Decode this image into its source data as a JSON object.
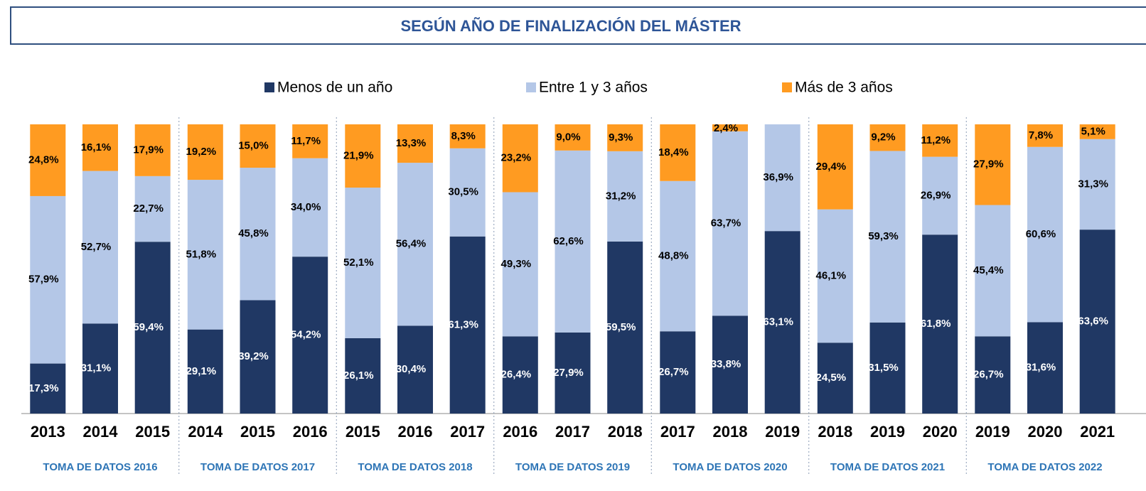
{
  "chart_data": {
    "type": "stacked-bar",
    "stacking": "percent",
    "title": "SEGÚN AÑO DE FINALIZACIÓN DEL MÁSTER",
    "groups": [
      {
        "name": "TOMA DE DATOS 2016",
        "categories": [
          "2013",
          "2014",
          "2015"
        ]
      },
      {
        "name": "TOMA DE DATOS 2017",
        "categories": [
          "2014",
          "2015",
          "2016"
        ]
      },
      {
        "name": "TOMA DE DATOS 2018",
        "categories": [
          "2015",
          "2016",
          "2017"
        ]
      },
      {
        "name": "TOMA DE DATOS 2019",
        "categories": [
          "2016",
          "2017",
          "2018"
        ]
      },
      {
        "name": "TOMA DE DATOS 2020",
        "categories": [
          "2017",
          "2018",
          "2019"
        ]
      },
      {
        "name": "TOMA DE DATOS 2021",
        "categories": [
          "2018",
          "2019",
          "2020"
        ]
      },
      {
        "name": "TOMA DE DATOS 2022",
        "categories": [
          "2019",
          "2020",
          "2021"
        ]
      }
    ],
    "series": [
      {
        "name": "Menos de un año",
        "color": "#203864",
        "values": [
          17.3,
          31.1,
          59.4,
          29.1,
          39.2,
          54.2,
          26.1,
          30.4,
          61.3,
          26.4,
          27.9,
          59.5,
          26.7,
          33.8,
          63.1,
          24.5,
          31.5,
          61.8,
          26.7,
          31.6,
          63.6
        ],
        "value_labels": [
          "17,3%",
          "31,1%",
          "59,4%",
          "29,1%",
          "39,2%",
          "54,2%",
          "26,1%",
          "30,4%",
          "61,3%",
          "26,4%",
          "27,9%",
          "59,5%",
          "26,7%",
          "33,8%",
          "63,1%",
          "24,5%",
          "31,5%",
          "61,8%",
          "26,7%",
          "31,6%",
          "63,6%"
        ]
      },
      {
        "name": "Entre 1 y 3 años",
        "color": "#b4c7e7",
        "values": [
          57.9,
          52.7,
          22.7,
          51.8,
          45.8,
          34.0,
          52.1,
          56.4,
          30.5,
          49.3,
          62.6,
          31.2,
          48.8,
          63.7,
          36.9,
          46.1,
          59.3,
          26.9,
          45.4,
          60.6,
          31.3
        ],
        "value_labels": [
          "57,9%",
          "52,7%",
          "22,7%",
          "51,8%",
          "45,8%",
          "34,0%",
          "52,1%",
          "56,4%",
          "30,5%",
          "49,3%",
          "62,6%",
          "31,2%",
          "48,8%",
          "63,7%",
          "36,9%",
          "46,1%",
          "59,3%",
          "26,9%",
          "45,4%",
          "60,6%",
          "31,3%"
        ]
      },
      {
        "name": "Más de 3 años",
        "color": "#ff9b21",
        "values": [
          24.8,
          16.1,
          17.9,
          19.2,
          15.0,
          11.7,
          21.9,
          13.3,
          8.3,
          23.2,
          9.0,
          9.3,
          18.4,
          2.4,
          null,
          29.4,
          9.2,
          11.2,
          27.9,
          7.8,
          5.1
        ],
        "value_labels": [
          "24,8%",
          "16,1%",
          "17,9%",
          "19,2%",
          "15,0%",
          "11,7%",
          "21,9%",
          "13,3%",
          "8,3%",
          "23,2%",
          "9,0%",
          "9,3%",
          "18,4%",
          "2,4%",
          null,
          "29,4%",
          "9,2%",
          "11,2%",
          "27,9%",
          "7,8%",
          "5,1%"
        ]
      }
    ]
  }
}
